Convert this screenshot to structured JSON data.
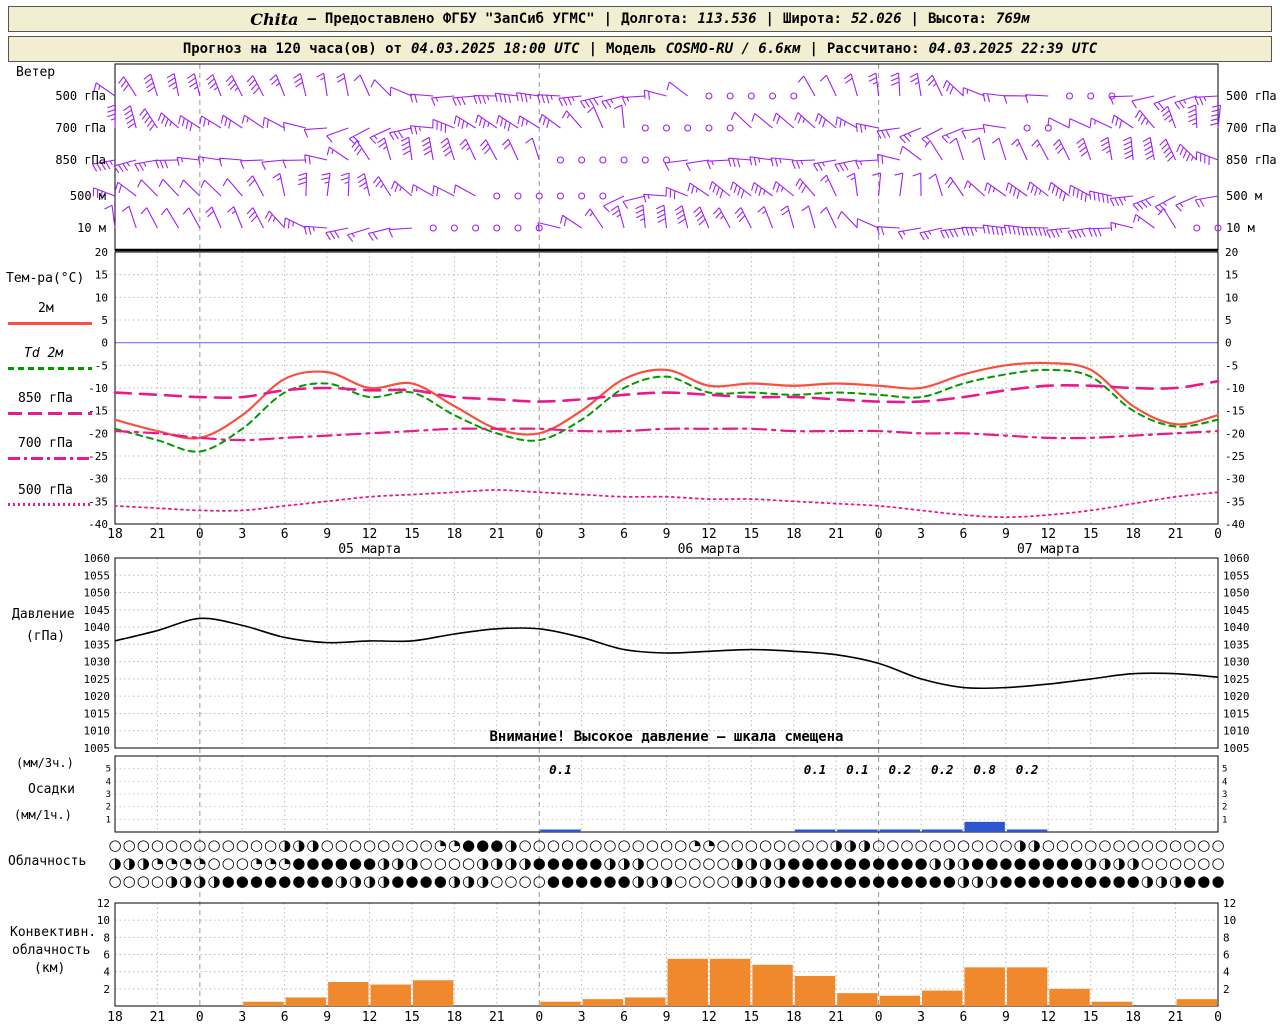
{
  "header": {
    "station": "Chita",
    "dash": "—",
    "provider": "Предоставлено ФГБУ \"ЗапСиб УГМС\"",
    "sep": "|",
    "lon_label": "Долгота:",
    "lon": "113.536",
    "lat_label": "Широта:",
    "lat": "52.026",
    "alt_label": "Высота:",
    "alt": "769м",
    "forecast_label": "Прогноз на 120 часа(ов) от",
    "forecast_time": "04.03.2025 18:00 UTC",
    "model_label": "Модель",
    "model": "COSMO-RU / 6.6км",
    "calc_label": "Рассчитано:",
    "calc_time": "04.03.2025 22:39 UTC"
  },
  "panels": {
    "wind_label": "Ветер",
    "temp_label": "Тем-ра(°C)",
    "pressure_label": "Давление",
    "pressure_unit": "(гПа)",
    "precip_unit3": "(мм/3ч.)",
    "precip_label": "Осадки",
    "precip_unit1": "(мм/1ч.)",
    "clouds_label": "Облачность",
    "conv_label1": "Конвективн.",
    "conv_label2": "облачность",
    "conv_label3": "(км)",
    "warning": "Внимание! Высокое давление — шкала смещена"
  },
  "chart_data": {
    "x_hours": [
      "18",
      "21",
      "0",
      "3",
      "6",
      "9",
      "12",
      "15",
      "18",
      "21",
      "0",
      "3",
      "6",
      "9",
      "12",
      "15",
      "18",
      "21",
      "0",
      "3",
      "6",
      "9",
      "12",
      "15",
      "18",
      "21",
      "0"
    ],
    "date_labels": [
      "05 марта",
      "06 марта",
      "07 марта"
    ],
    "wind": {
      "levels": [
        "500 гПа",
        "700 гПа",
        "850 гПа",
        "500 м",
        "10 м"
      ],
      "color": "#a020f0"
    },
    "temperature": {
      "type": "line",
      "ylim": [
        -40,
        20
      ],
      "yticks": [
        20,
        15,
        10,
        5,
        0,
        -5,
        -10,
        -15,
        -20,
        -25,
        -30,
        -35,
        -40
      ],
      "series": [
        {
          "name": "2м",
          "color": "#f94f3f",
          "style": "solid",
          "values": [
            -17,
            -19.5,
            -21,
            -16,
            -8,
            -6.5,
            -10,
            -9,
            -14,
            -19,
            -20,
            -15,
            -8,
            -6,
            -9.5,
            -9,
            -9.5,
            -9,
            -9.5,
            -10,
            -7,
            -5,
            -4.5,
            -6,
            -14,
            -18,
            -16
          ]
        },
        {
          "name": "Td 2м",
          "color": "#009900",
          "style": "dashed",
          "values": [
            -19,
            -21.5,
            -24,
            -19,
            -11,
            -9,
            -12,
            -11,
            -16,
            -20,
            -21.5,
            -17,
            -10,
            -7.5,
            -11,
            -11,
            -11.5,
            -11,
            -11.5,
            -12,
            -9,
            -7,
            -6,
            -7.5,
            -15,
            -18.5,
            -17
          ]
        },
        {
          "name": "850 гПа",
          "color": "#e8198b",
          "style": "longdash",
          "values": [
            -11,
            -11.5,
            -12,
            -12,
            -10.5,
            -10,
            -10.5,
            -10.5,
            -12,
            -12.5,
            -13,
            -12.5,
            -11.5,
            -11,
            -11.5,
            -12,
            -12,
            -12.5,
            -13,
            -13,
            -12,
            -10.5,
            -9.5,
            -9.5,
            -10,
            -10,
            -8.5
          ]
        },
        {
          "name": "700 гПа",
          "color": "#e8198b",
          "style": "dashdot",
          "values": [
            -19.5,
            -20,
            -21,
            -21.5,
            -21,
            -20.5,
            -20,
            -19.5,
            -19,
            -19,
            -19,
            -19.5,
            -19.5,
            -19,
            -19,
            -19,
            -19.5,
            -19.5,
            -19.5,
            -20,
            -20,
            -20.5,
            -21,
            -21,
            -20.5,
            -20,
            -19.5
          ]
        },
        {
          "name": "500 гПа",
          "color": "#e8198b",
          "style": "dotted",
          "values": [
            -36,
            -36.5,
            -37,
            -37,
            -36,
            -35,
            -34,
            -33.5,
            -33,
            -32.5,
            -33,
            -33.5,
            -34,
            -34,
            -34.5,
            -34.5,
            -35,
            -35.5,
            -36,
            -37,
            -38,
            -38.5,
            -38,
            -37,
            -35.5,
            -34,
            -33
          ]
        }
      ]
    },
    "pressure": {
      "type": "line",
      "ylim": [
        1005,
        1060
      ],
      "yticks": [
        1060,
        1055,
        1050,
        1045,
        1040,
        1035,
        1030,
        1025,
        1020,
        1015,
        1010,
        1005
      ],
      "color": "#000000",
      "values": [
        1036,
        1039,
        1042.5,
        1040.5,
        1037,
        1035.5,
        1036,
        1036,
        1038,
        1039.5,
        1039.5,
        1037,
        1033.5,
        1032.5,
        1033,
        1033.5,
        1033,
        1032,
        1029.5,
        1025,
        1022.5,
        1022.5,
        1023.5,
        1025,
        1026.5,
        1026.5,
        1025.5
      ]
    },
    "precipitation": {
      "type": "bar",
      "ylim": [
        0,
        6
      ],
      "yticks": [
        5,
        4,
        3,
        2,
        1
      ],
      "color": "#2c55cf",
      "labels": [
        {
          "i": 10,
          "v": "0.1"
        },
        {
          "i": 16,
          "v": "0.1"
        },
        {
          "i": 17,
          "v": "0.1"
        },
        {
          "i": 18,
          "v": "0.2"
        },
        {
          "i": 19,
          "v": "0.2"
        },
        {
          "i": 20,
          "v": "0.8"
        },
        {
          "i": 21,
          "v": "0.2"
        }
      ],
      "values": [
        0,
        0,
        0,
        0,
        0,
        0,
        0,
        0,
        0,
        0,
        0.05,
        0,
        0,
        0,
        0,
        0,
        0.1,
        0.1,
        0.2,
        0.2,
        0.8,
        0.2,
        0,
        0,
        0,
        0
      ]
    },
    "cloudiness": {
      "type": "table",
      "rows": [
        [
          [
            "○",
            12
          ],
          [
            "◑",
            3
          ],
          [
            "○",
            8
          ],
          [
            "◔",
            2
          ],
          [
            "●",
            3
          ],
          [
            "◑",
            1
          ],
          [
            "○",
            12
          ],
          [
            "◔",
            2
          ],
          [
            "○",
            8
          ],
          [
            "◑",
            3
          ],
          [
            "○",
            10
          ],
          [
            "◑",
            2
          ],
          [
            "○",
            13
          ]
        ],
        [
          [
            "◑",
            3
          ],
          [
            "◔",
            4
          ],
          [
            "○",
            3
          ],
          [
            "◔",
            3
          ],
          [
            "●",
            6
          ],
          [
            "◑",
            3
          ],
          [
            "○",
            4
          ],
          [
            "◑",
            4
          ],
          [
            "●",
            5
          ],
          [
            "◑",
            3
          ],
          [
            "○",
            6
          ],
          [
            "◑",
            4
          ],
          [
            "●",
            10
          ],
          [
            "◑",
            3
          ],
          [
            "●",
            8
          ],
          [
            "◑",
            4
          ],
          [
            "○",
            6
          ]
        ],
        [
          [
            "○",
            4
          ],
          [
            "◑",
            4
          ],
          [
            "●",
            8
          ],
          [
            "◑",
            4
          ],
          [
            "●",
            4
          ],
          [
            "◑",
            3
          ],
          [
            "○",
            4
          ],
          [
            "●",
            6
          ],
          [
            "◑",
            3
          ],
          [
            "○",
            4
          ],
          [
            "◑",
            4
          ],
          [
            "●",
            12
          ],
          [
            "◑",
            3
          ],
          [
            "●",
            10
          ],
          [
            "◑",
            3
          ],
          [
            "●",
            3
          ]
        ]
      ]
    },
    "convective": {
      "type": "bar",
      "ylim": [
        0,
        12
      ],
      "yticks": [
        12,
        10,
        8,
        6,
        4,
        2
      ],
      "color": "#f0882c",
      "values": [
        0,
        0,
        0,
        0.5,
        1,
        2.8,
        2.5,
        3,
        0,
        0,
        0.5,
        0.8,
        1,
        5.5,
        5.5,
        4.8,
        3.5,
        1.5,
        1.2,
        1.8,
        4.5,
        4.5,
        2,
        0.5,
        0,
        0.8
      ]
    }
  }
}
